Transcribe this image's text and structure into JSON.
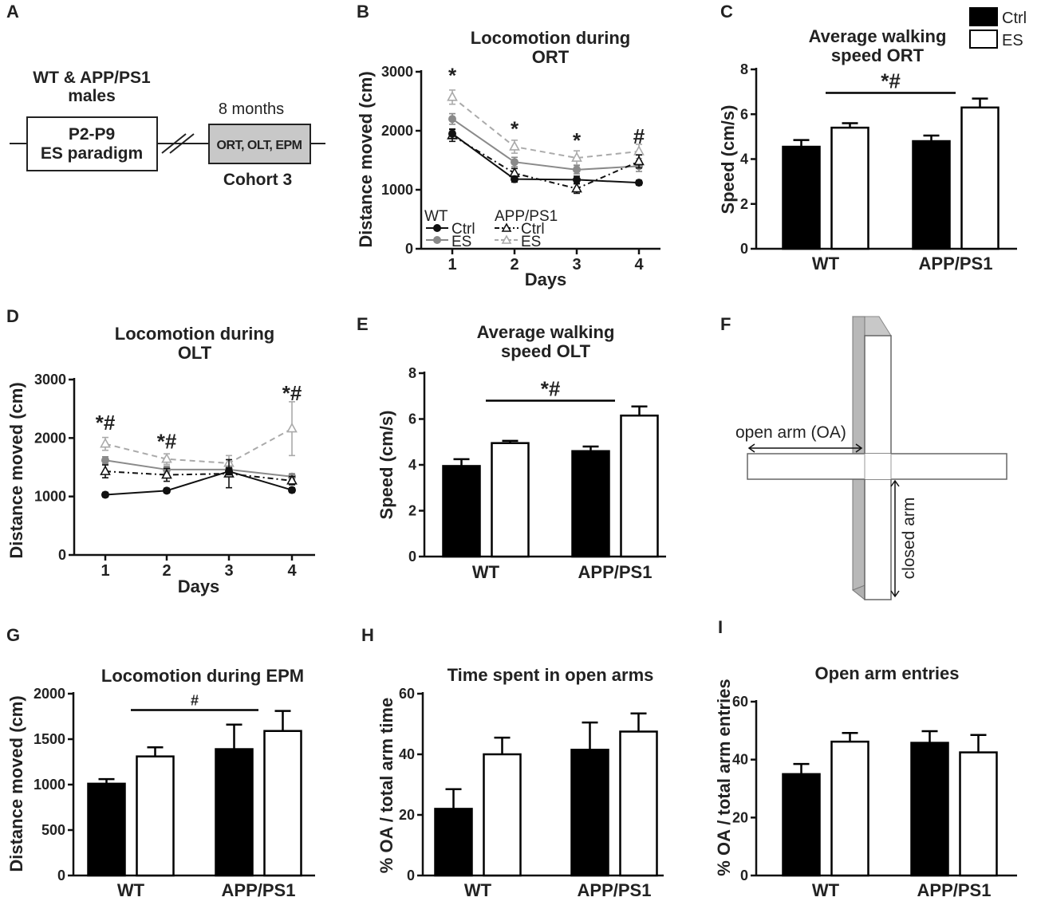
{
  "panel_labels": {
    "A": "A",
    "B": "B",
    "C": "C",
    "D": "D",
    "E": "E",
    "F": "F",
    "G": "G",
    "H": "H",
    "I": "I"
  },
  "panel_a": {
    "group_line1": "WT & APP/PS1",
    "group_line2": "males",
    "es_box_line1": "P2-P9",
    "es_box_line2": "ES paradigm",
    "age": "8 months",
    "tests_box": "ORT, OLT, EPM",
    "cohort": "Cohort 3"
  },
  "legend": {
    "ctrl": "Ctrl",
    "es": "ES"
  },
  "line_legend": {
    "wt": "WT",
    "app": "APP/PS1",
    "ctrl": "Ctrl",
    "es": "ES"
  },
  "panel_f": {
    "open_arm": "open arm (OA)",
    "closed_arm": "closed arm"
  },
  "chart_data": [
    {
      "id": "B",
      "type": "line",
      "title_lines": [
        "Locomotion during",
        "ORT"
      ],
      "xlabel": "Days",
      "ylabel": "Distance moved (cm)",
      "x": [
        1,
        2,
        3,
        4
      ],
      "xticks": [
        "1",
        "2",
        "3",
        "4"
      ],
      "ylim": [
        0,
        3000
      ],
      "yticks": [
        0,
        1000,
        2000,
        3000
      ],
      "series": [
        {
          "name": "WT Ctrl",
          "values": [
            1950,
            1180,
            1170,
            1120
          ],
          "errors": [
            80,
            50,
            60,
            40
          ]
        },
        {
          "name": "WT ES",
          "values": [
            2200,
            1470,
            1340,
            1400
          ],
          "errors": [
            90,
            80,
            70,
            90
          ]
        },
        {
          "name": "APP/PS1 Ctrl",
          "values": [
            1920,
            1280,
            1020,
            1480
          ],
          "errors": [
            100,
            80,
            80,
            110
          ]
        },
        {
          "name": "APP/PS1 ES",
          "values": [
            2570,
            1730,
            1540,
            1650
          ],
          "errors": [
            120,
            110,
            120,
            120
          ]
        }
      ],
      "annotations": [
        {
          "x": 1,
          "label": "*",
          "value": 2950
        },
        {
          "x": 2,
          "label": "*",
          "value": 2050
        },
        {
          "x": 3,
          "label": "*",
          "value": 1850
        },
        {
          "x": 4,
          "label": "#",
          "value": 1920
        }
      ]
    },
    {
      "id": "C",
      "type": "bar",
      "title_lines": [
        "Average walking",
        "speed ORT"
      ],
      "ylabel": "Speed (cm/s)",
      "categories": [
        "WT",
        "APP/PS1"
      ],
      "ylim": [
        0,
        8
      ],
      "yticks": [
        0,
        2,
        4,
        6,
        8
      ],
      "series": [
        {
          "name": "Ctrl",
          "values": [
            4.55,
            4.8
          ],
          "errors": [
            0.3,
            0.25
          ]
        },
        {
          "name": "ES",
          "values": [
            5.4,
            6.3
          ],
          "errors": [
            0.2,
            0.4
          ]
        }
      ],
      "significance": {
        "label": "*#",
        "from": "WT",
        "to": "APP/PS1",
        "value": 6.95
      }
    },
    {
      "id": "D",
      "type": "line",
      "title_lines": [
        "Locomotion during",
        "OLT"
      ],
      "xlabel": "Days",
      "ylabel": "Distance moved (cm)",
      "x": [
        1,
        2,
        3,
        4
      ],
      "xticks": [
        "1",
        "2",
        "3",
        "4"
      ],
      "ylim": [
        0,
        3000
      ],
      "yticks": [
        0,
        1000,
        2000,
        3000
      ],
      "series": [
        {
          "name": "WT Ctrl",
          "values": [
            1030,
            1100,
            1430,
            1110
          ],
          "errors": [
            40,
            40,
            60,
            40
          ]
        },
        {
          "name": "WT ES",
          "values": [
            1620,
            1460,
            1460,
            1340
          ],
          "errors": [
            60,
            60,
            60,
            50
          ]
        },
        {
          "name": "APP/PS1 Ctrl",
          "values": [
            1430,
            1370,
            1390,
            1270
          ],
          "errors": [
            110,
            110,
            240,
            70
          ]
        },
        {
          "name": "APP/PS1 ES",
          "values": [
            1900,
            1640,
            1570,
            2160
          ],
          "errors": [
            110,
            90,
            130,
            460
          ]
        }
      ],
      "annotations": [
        {
          "x": 1,
          "label": "*#",
          "value": 2280
        },
        {
          "x": 2,
          "label": "*#",
          "value": 1960
        },
        {
          "x": 4,
          "label": "*#",
          "value": 2780
        }
      ]
    },
    {
      "id": "E",
      "type": "bar",
      "title_lines": [
        "Average walking",
        "speed OLT"
      ],
      "ylabel": "Speed (cm/s)",
      "categories": [
        "WT",
        "APP/PS1"
      ],
      "ylim": [
        0,
        8
      ],
      "yticks": [
        0,
        2,
        4,
        6,
        8
      ],
      "series": [
        {
          "name": "Ctrl",
          "values": [
            3.95,
            4.6
          ],
          "errors": [
            0.3,
            0.2
          ]
        },
        {
          "name": "ES",
          "values": [
            4.95,
            6.15
          ],
          "errors": [
            0.1,
            0.4
          ]
        }
      ],
      "significance": {
        "label": "*#",
        "from": "WT",
        "to": "APP/PS1",
        "value": 6.8
      }
    },
    {
      "id": "G",
      "type": "bar",
      "title_lines": [
        "Locomotion during EPM"
      ],
      "ylabel": "Distance moved (cm)",
      "categories": [
        "WT",
        "APP/PS1"
      ],
      "ylim": [
        0,
        2000
      ],
      "yticks": [
        0,
        500,
        1000,
        1500,
        2000
      ],
      "series": [
        {
          "name": "Ctrl",
          "values": [
            1010,
            1390
          ],
          "errors": [
            50,
            270
          ]
        },
        {
          "name": "ES",
          "values": [
            1310,
            1590
          ],
          "errors": [
            100,
            220
          ]
        }
      ],
      "significance": {
        "label": "#",
        "from": "WT",
        "to": "APP/PS1",
        "value": 1820
      }
    },
    {
      "id": "H",
      "type": "bar",
      "title_lines": [
        "Time spent in open arms"
      ],
      "ylabel": "% OA / total arm time",
      "categories": [
        "WT",
        "APP/PS1"
      ],
      "ylim": [
        0,
        60
      ],
      "yticks": [
        0,
        20,
        40,
        60
      ],
      "series": [
        {
          "name": "Ctrl",
          "values": [
            22,
            41.5
          ],
          "errors": [
            6.5,
            9
          ]
        },
        {
          "name": "ES",
          "values": [
            40,
            47.5
          ],
          "errors": [
            5.5,
            6
          ]
        }
      ]
    },
    {
      "id": "I",
      "type": "bar",
      "title_lines": [
        "Open arm entries"
      ],
      "ylabel": "% OA / total arm entries",
      "categories": [
        "WT",
        "APP/PS1"
      ],
      "ylim": [
        0,
        60
      ],
      "yticks": [
        0,
        20,
        40,
        60
      ],
      "series": [
        {
          "name": "Ctrl",
          "values": [
            35,
            45.8
          ],
          "errors": [
            3.5,
            4
          ]
        },
        {
          "name": "ES",
          "values": [
            46.2,
            42.5
          ],
          "errors": [
            3,
            6
          ]
        }
      ]
    }
  ]
}
